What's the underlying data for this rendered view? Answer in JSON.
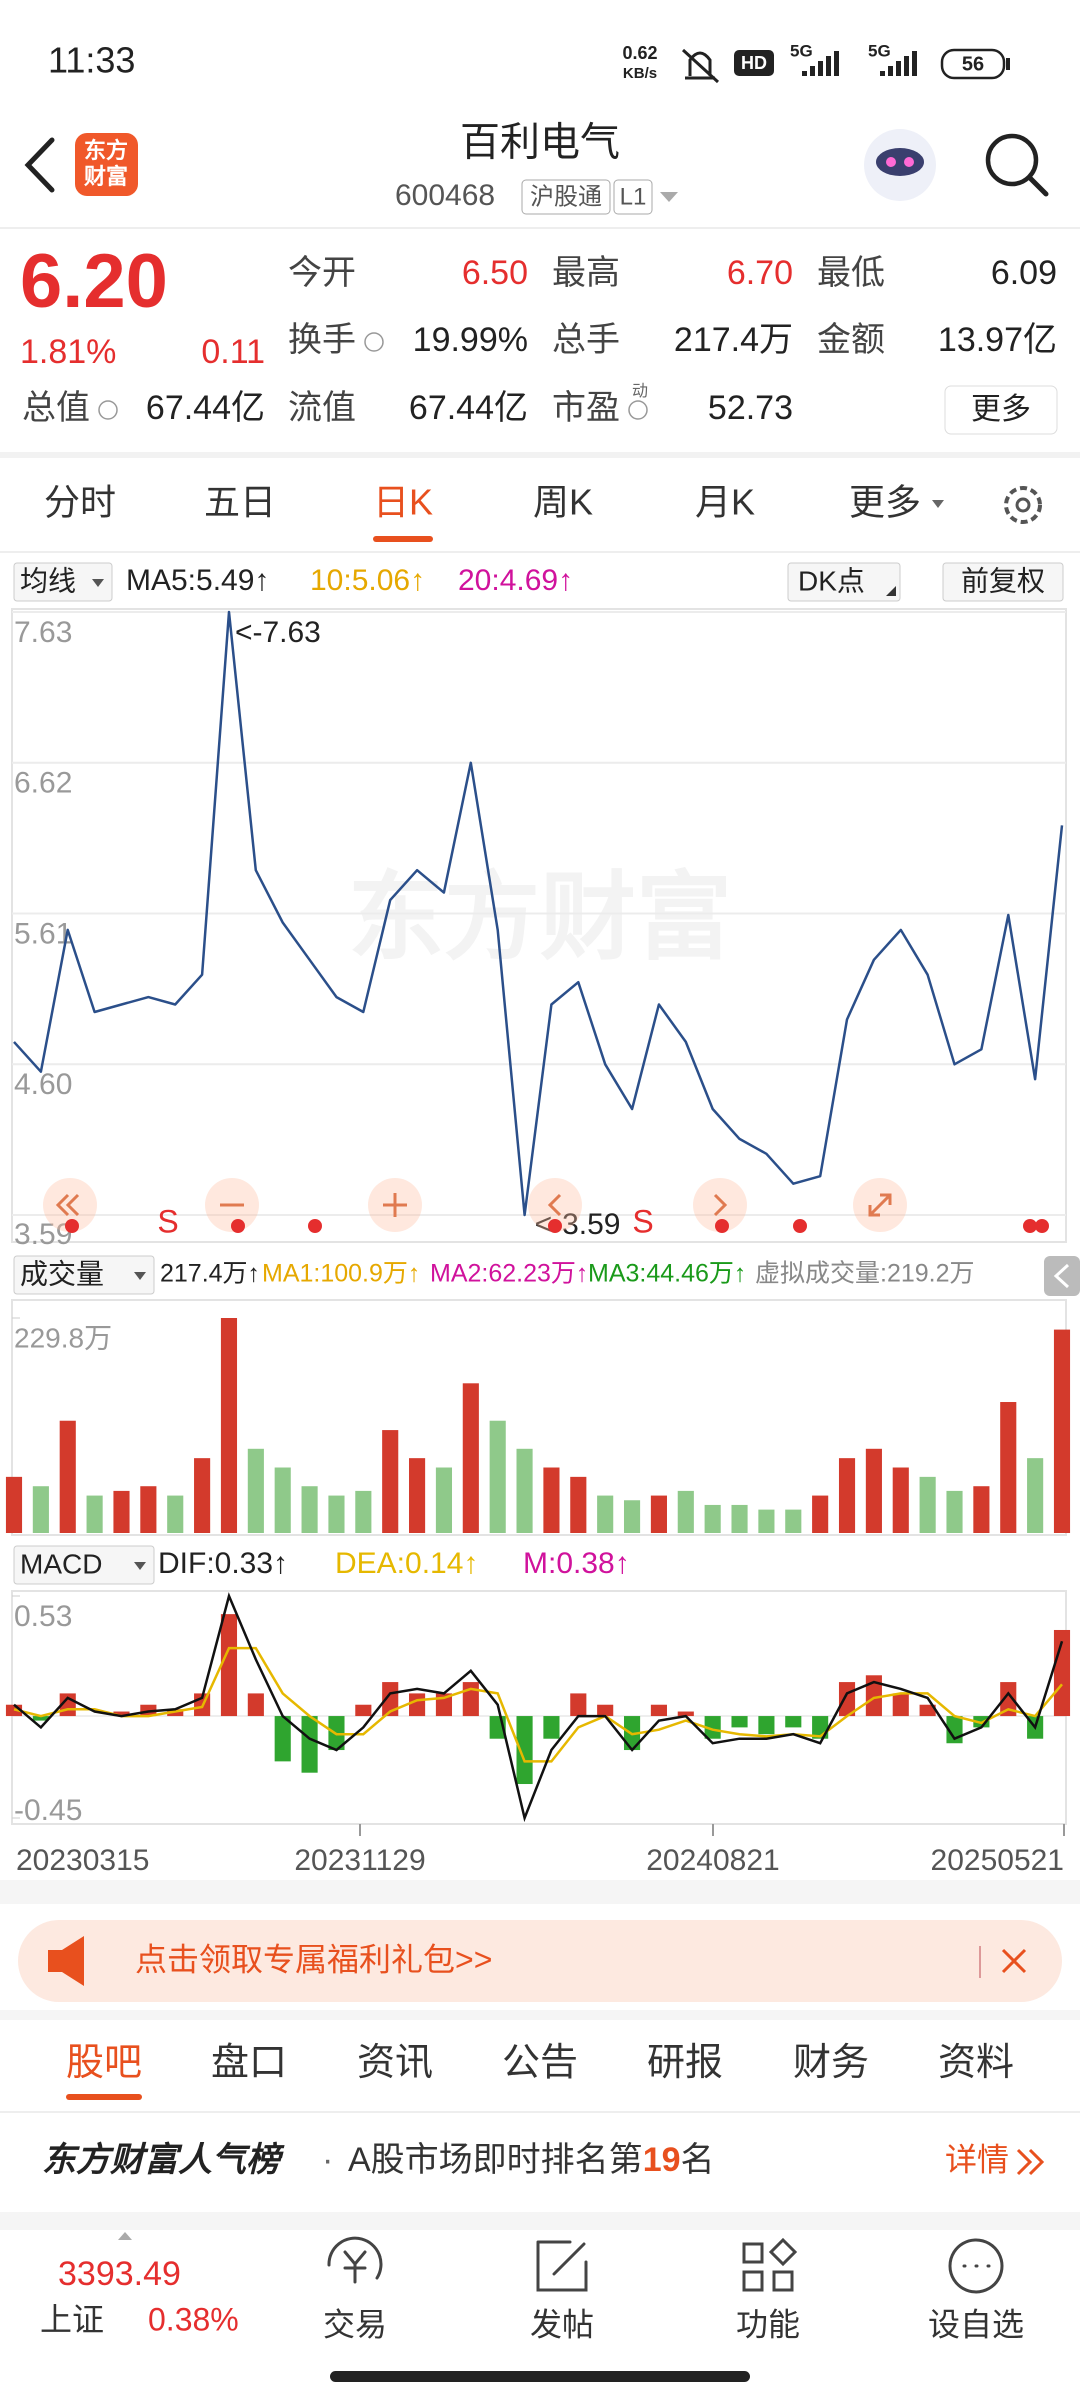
{
  "status_bar": {
    "time": "11:33",
    "net_speed": "0.62",
    "net_unit": "KB/s",
    "hd": "HD",
    "signal_1": "5G",
    "signal_2": "5G",
    "battery": "56"
  },
  "header": {
    "logo": [
      "东方",
      "财富"
    ],
    "title": "百利电气",
    "code": "600468",
    "tag": "沪股通",
    "level": "L1"
  },
  "quote": {
    "price": "6.20",
    "change_pct": "1.81%",
    "change": "0.11",
    "more": "更多",
    "fields": [
      {
        "label": "今开",
        "value": "6.50",
        "color": "#e52e2e"
      },
      {
        "label": "最高",
        "value": "6.70",
        "color": "#e52e2e"
      },
      {
        "label": "最低",
        "value": "6.09",
        "color": "#222222"
      },
      {
        "label": "换手",
        "value": "19.99%",
        "color": "#222222"
      },
      {
        "label": "总手",
        "value": "217.4万",
        "color": "#222222"
      },
      {
        "label": "金额",
        "value": "13.97亿",
        "color": "#222222"
      },
      {
        "label": "总值",
        "value": "67.44亿",
        "color": "#222222"
      },
      {
        "label": "流值",
        "value": "67.44亿",
        "color": "#222222"
      },
      {
        "label": "市盈",
        "superscript": "动",
        "value": "52.73",
        "color": "#222222"
      }
    ]
  },
  "kline": {
    "tabs": [
      "分时",
      "五日",
      "日K",
      "周K",
      "月K",
      "更多"
    ],
    "active_tab": 2,
    "ma_selector": "均线",
    "ma_legend": [
      {
        "text": "MA5:5.49↑",
        "color": "#222222"
      },
      {
        "text": "10:5.06↑",
        "color": "#e6a800"
      },
      {
        "text": "20:4.69↑",
        "color": "#d0129c"
      }
    ],
    "dk": "DK点",
    "adjust": "前复权",
    "watermark": "东方财富",
    "price": {
      "ylim": [
        3.59,
        7.63
      ],
      "yticks": [
        7.63,
        6.62,
        5.61,
        {
          "value": 4.6,
          "label": "4.60"
        },
        3.59
      ],
      "grid": true,
      "color": "#2b4f8a",
      "values": [
        4.75,
        4.55,
        5.5,
        4.95,
        5.0,
        5.05,
        5.0,
        5.2,
        7.63,
        5.9,
        5.55,
        5.3,
        5.05,
        4.95,
        5.7,
        5.9,
        5.75,
        6.62,
        5.5,
        3.59,
        5.0,
        5.15,
        4.6,
        4.3,
        5.0,
        4.75,
        4.3,
        4.1,
        4.0,
        3.8,
        3.85,
        4.9,
        5.3,
        5.5,
        5.2,
        4.6,
        4.7,
        5.6,
        4.5,
        6.2
      ],
      "max_label": "<-7.63",
      "min_label": "<-3.59",
      "signals": [
        "S",
        "S"
      ]
    },
    "volume": {
      "selector": "成交量",
      "legend": [
        {
          "text": "217.4万↑",
          "color": "#222222"
        },
        {
          "text": "MA1:100.9万↑",
          "color": "#e6a800"
        },
        {
          "text": "MA2:62.23万↑",
          "color": "#d0129c"
        },
        {
          "text": "MA3:44.46万↑",
          "color": "#1a9a1a"
        },
        {
          "text": "虚拟成交量:219.2万",
          "color": "#888888"
        }
      ],
      "ylim": [
        0,
        229.8
      ],
      "yticks": [
        {
          "value": 229.8,
          "label": "229.8万"
        }
      ],
      "values": [
        60,
        50,
        120,
        40,
        45,
        50,
        40,
        80,
        229.8,
        90,
        70,
        50,
        40,
        45,
        110,
        80,
        70,
        160,
        120,
        90,
        70,
        60,
        40,
        35,
        40,
        45,
        30,
        30,
        25,
        25,
        40,
        80,
        90,
        70,
        60,
        45,
        50,
        140,
        80,
        217.4
      ]
    },
    "macd": {
      "selector": "MACD",
      "legend": [
        {
          "text": "DIF:0.33↑",
          "color": "#222222"
        },
        {
          "text": "DEA:0.14↑",
          "color": "#e6b800"
        },
        {
          "text": "M:0.38↑",
          "color": "#d0129c"
        }
      ],
      "ylim": [
        -0.45,
        0.53
      ],
      "yticks": [
        0.53,
        -0.45
      ],
      "m": [
        0.05,
        -0.02,
        0.1,
        0.0,
        0.02,
        0.05,
        0.03,
        0.1,
        0.45,
        0.1,
        -0.2,
        -0.25,
        -0.15,
        0.05,
        0.15,
        0.1,
        0.1,
        0.15,
        -0.1,
        -0.3,
        -0.1,
        0.1,
        0.05,
        -0.15,
        0.05,
        0.02,
        -0.1,
        -0.05,
        -0.08,
        -0.05,
        -0.1,
        0.15,
        0.18,
        0.1,
        0.05,
        -0.12,
        -0.05,
        0.15,
        -0.1,
        0.38
      ],
      "dif": [
        0.05,
        -0.05,
        0.08,
        0.02,
        0.0,
        0.02,
        0.03,
        0.08,
        0.53,
        0.25,
        0.0,
        -0.1,
        -0.15,
        -0.05,
        0.1,
        0.12,
        0.1,
        0.2,
        0.05,
        -0.45,
        -0.15,
        0.0,
        0.0,
        -0.15,
        -0.02,
        0.0,
        -0.12,
        -0.1,
        -0.1,
        -0.08,
        -0.12,
        0.1,
        0.15,
        0.12,
        0.08,
        -0.1,
        -0.05,
        0.1,
        -0.05,
        0.33
      ],
      "dea": [
        0.03,
        0.0,
        0.03,
        0.03,
        0.0,
        0.0,
        0.02,
        0.04,
        0.3,
        0.3,
        0.1,
        0.0,
        -0.08,
        -0.08,
        0.02,
        0.07,
        0.08,
        0.12,
        0.1,
        -0.2,
        -0.2,
        -0.05,
        0.0,
        -0.08,
        -0.06,
        -0.02,
        -0.06,
        -0.08,
        -0.09,
        -0.08,
        -0.09,
        0.0,
        0.08,
        0.1,
        0.1,
        0.0,
        -0.03,
        0.03,
        0.0,
        0.14
      ]
    },
    "dates": [
      "20230315",
      "20231129",
      "20240821",
      "20250521"
    ]
  },
  "banner": {
    "text": "点击领取专属福利礼包>>"
  },
  "sub_tabs": [
    "股吧",
    "盘口",
    "资讯",
    "公告",
    "研报",
    "财务",
    "资料"
  ],
  "ranking": {
    "title": "东方财富人气榜",
    "separator": "·",
    "prefix": "A股市场即时排名第",
    "rank": "19",
    "suffix": "名",
    "detail": "详情"
  },
  "bottom_nav": {
    "index_value": "3393.49",
    "index_name": "上证",
    "index_change": "0.38%",
    "items": [
      "交易",
      "发帖",
      "功能",
      "设自选"
    ]
  }
}
